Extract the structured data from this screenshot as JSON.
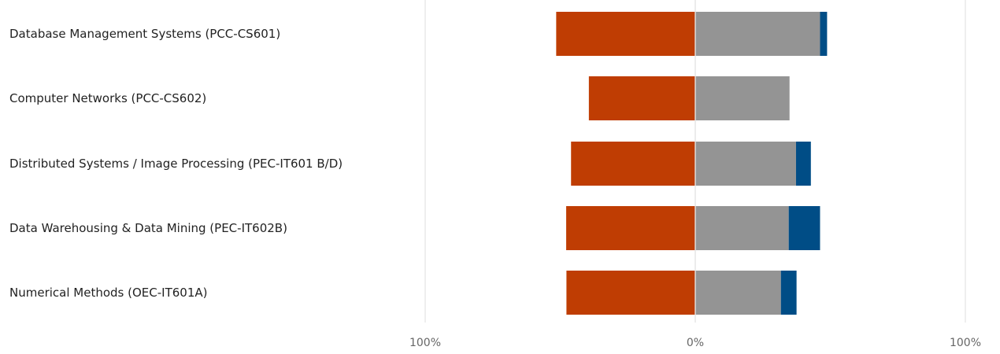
{
  "chart_data": {
    "type": "bar",
    "orientation": "horizontal",
    "stacked": "diverging",
    "categories": [
      "Database Management Systems (PCC-CS601)",
      "Computer Networks (PCC-CS602)",
      "Distributed Systems / Image Processing (PEC-IT601 B/D)",
      "Data Warehousing & Data Mining (PEC-IT602B)",
      "Numerical Methods (OEC-IT601A)"
    ],
    "series": [
      {
        "color": "#BF3D03",
        "values": [
          -51.5,
          -39.4,
          -46.0,
          -47.8,
          -47.7
        ]
      },
      {
        "color": "#949494",
        "values": [
          46.2,
          34.9,
          37.3,
          34.6,
          31.7
        ]
      },
      {
        "color": "#004D86",
        "values": [
          2.6,
          0,
          5.5,
          11.6,
          5.8
        ]
      }
    ],
    "xlim": [
      -100,
      100
    ],
    "x_tick_labels": [
      "100%",
      "0%",
      "100%"
    ],
    "grid": true,
    "legend": "none"
  }
}
